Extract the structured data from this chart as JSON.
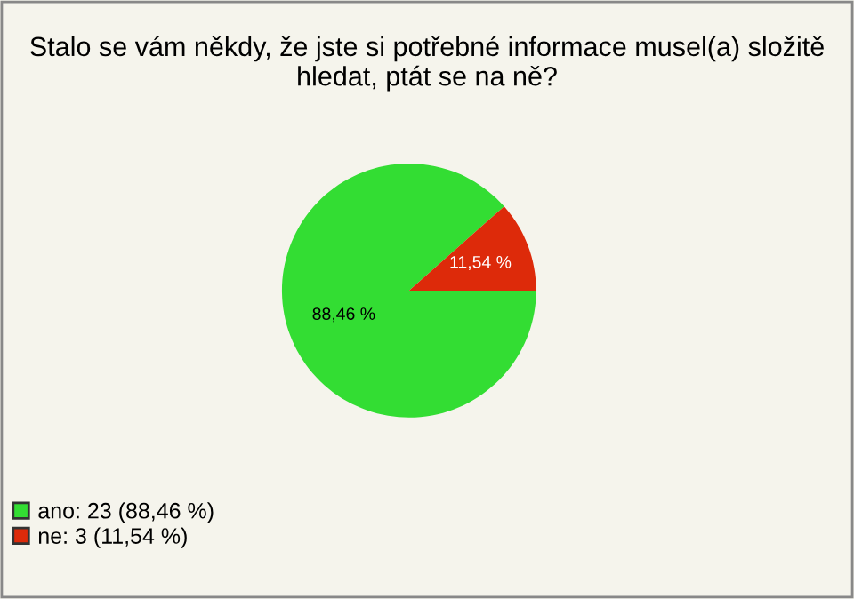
{
  "chart_data": {
    "type": "pie",
    "title": "Stalo se vám někdy, že jste si potřebné informace musel(a) složitě hledat, ptát se na ně?",
    "categories": [
      "ano: 23 (88,46 %)",
      "ne: 3 (11,54 %)"
    ],
    "values": [
      88.46,
      11.54
    ],
    "value_labels": [
      "88,46 %",
      "11,54 %"
    ],
    "colors": [
      "#33dd33",
      "#dd2a0a"
    ],
    "legend": "bottom left"
  }
}
